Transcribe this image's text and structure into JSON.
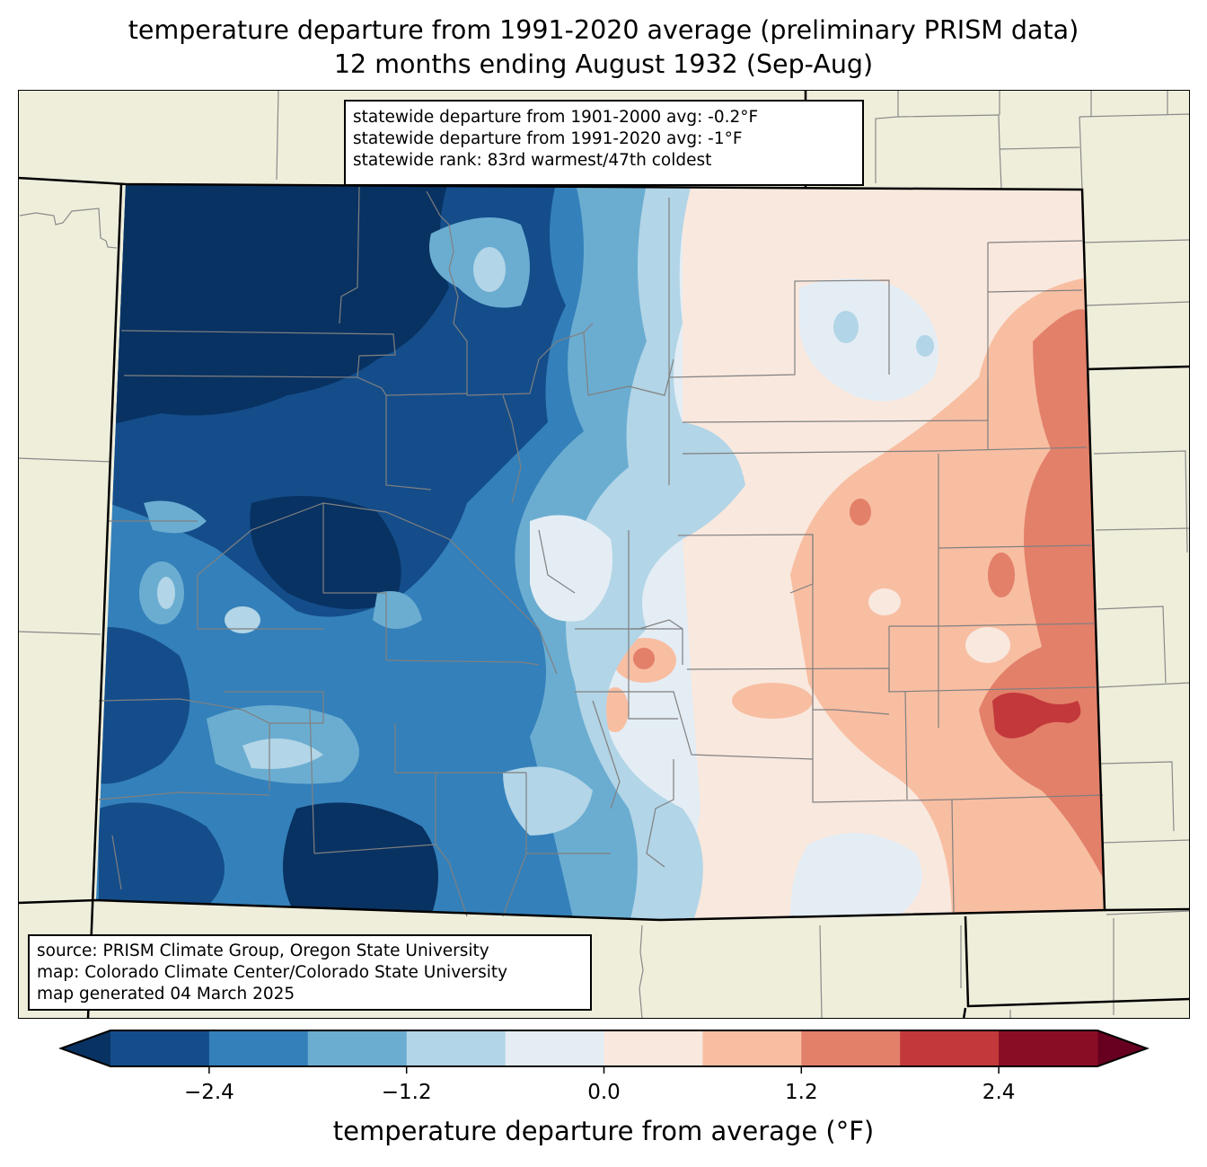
{
  "title": {
    "line1": "temperature departure from 1991-2020 average (preliminary PRISM data)",
    "line2": "12 months ending August 1932 (Sep-Aug)"
  },
  "stats_box": {
    "line1": "statewide departure from 1901-2000 avg: -0.2°F",
    "line2": "statewide departure from 1991-2020 avg: -1°F",
    "line3": "statewide rank: 83rd warmest/47th coldest"
  },
  "credits_box": {
    "line1": "source: PRISM Climate Group, Oregon State University",
    "line2": "map: Colorado Climate Center/Colorado State University",
    "line3": "map generated 04 March 2025"
  },
  "colors": {
    "land": "#efeedb",
    "county_line": "#808080",
    "state_line": "#000000"
  },
  "chart_data": {
    "type": "heatmap",
    "title": "temperature departure from 1991-2020 average (preliminary PRISM data)",
    "subtitle": "12 months ending August 1932 (Sep-Aug)",
    "region": "Colorado",
    "colorbar": {
      "label": "temperature departure from average (°F)",
      "extend": "both",
      "boundaries": [
        -3.0,
        -2.4,
        -1.8,
        -1.2,
        -0.6,
        0.0,
        0.6,
        1.2,
        1.8,
        2.4,
        3.0
      ],
      "colors": [
        "#144d8a",
        "#3480ba",
        "#6badd1",
        "#b2d5e7",
        "#e4edf4",
        "#f9e8de",
        "#f8bea2",
        "#e3806a",
        "#c3393b",
        "#8a0d26"
      ],
      "under_color": "#083262",
      "over_color": "#670020",
      "ticks": [
        -2.4,
        -1.2,
        0.0,
        1.2,
        2.4
      ],
      "tick_labels": [
        "−2.4",
        "−1.2",
        "0.0",
        "1.2",
        "2.4"
      ]
    },
    "pattern": {
      "west": "cold (below -3.0 to -1.2 °F), coldest in northwest and mountains",
      "central": "near average (-0.6 to 0.6 °F)",
      "east": "warm (0.6 to 1.8 °F), warmest pocket 1.8 to 2.4 °F in southeast"
    }
  }
}
